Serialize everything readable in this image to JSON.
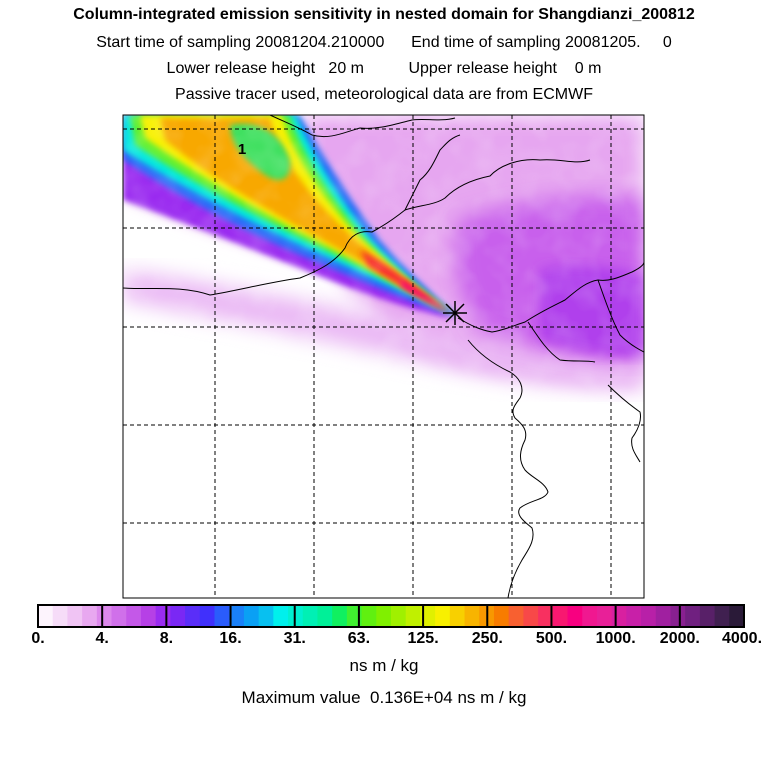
{
  "header": {
    "title": "Column-integrated emission sensitivity in nested domain for Shangdianzi_200812",
    "sampling_line": "Start time of sampling 20081204.210000      End time of sampling 20081205.     0",
    "release_line": "Lower release height   20 m          Upper release height    0 m",
    "tracer_line": "Passive tracer used, meteorological data are from ECMWF"
  },
  "map": {
    "contour_label": "1",
    "receptor_marker": "star"
  },
  "colorbar": {
    "tick_labels": [
      "0.",
      "4.",
      "8.",
      "16.",
      "31.",
      "63.",
      "125.",
      "250.",
      "500.",
      "1000.",
      "2000.",
      "4000."
    ],
    "colors": [
      "#fdf4fd",
      "#f6dcf8",
      "#f0c4f4",
      "#e8a8f0",
      "#dc88ec",
      "#d070ea",
      "#c458e8",
      "#b640e6",
      "#9a2cf0",
      "#7a28f4",
      "#5a2ef8",
      "#4030fc",
      "#2a5cfc",
      "#1a80f8",
      "#0aa0f4",
      "#08c0f0",
      "#00f0ec",
      "#00f0d0",
      "#00f0b4",
      "#00f098",
      "#10f060",
      "#40f030",
      "#60f010",
      "#80f000",
      "#a0f000",
      "#c0f000",
      "#e0f000",
      "#f8f000",
      "#f8d000",
      "#f8b400",
      "#f89800",
      "#f87c00",
      "#f86030",
      "#f84848",
      "#f83060",
      "#f81870",
      "#f80080",
      "#f01890",
      "#e82098",
      "#d820a0",
      "#c820a8",
      "#b820a8",
      "#a020a0",
      "#882090",
      "#702080",
      "#582068",
      "#402050",
      "#2a1a38"
    ],
    "units": "ns m / kg"
  },
  "footer": {
    "max_value": "Maximum value  0.136E+04 ns m / kg"
  }
}
